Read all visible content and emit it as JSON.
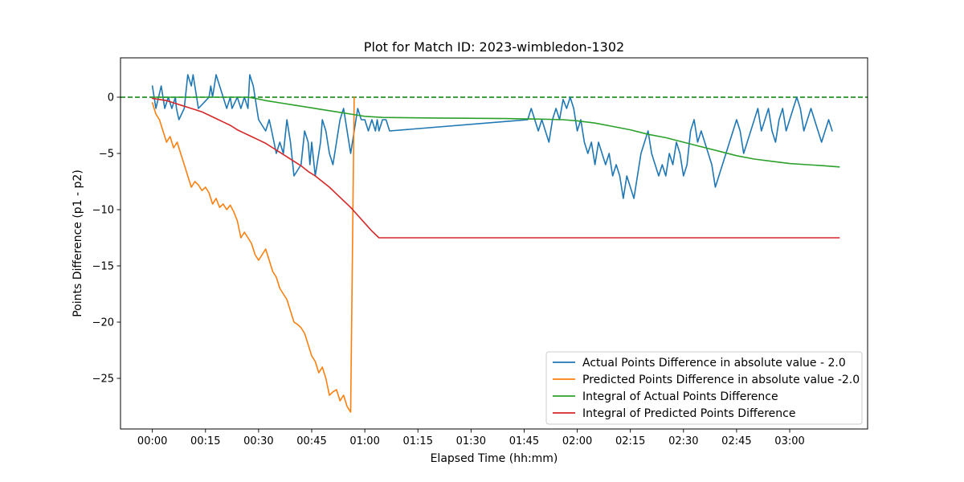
{
  "chart_data": {
    "type": "line",
    "title": "Plot for Match ID: 2023-wimbledon-1302",
    "xlabel": "Elapsed Time (hh:mm)",
    "ylabel": "Points Difference (p1 - p2)",
    "x_unit": "minutes",
    "xlim": [
      -9,
      202
    ],
    "ylim": [
      -29.5,
      3.5
    ],
    "x_ticks": [
      0,
      15,
      30,
      45,
      60,
      75,
      90,
      105,
      120,
      135,
      150,
      165,
      180
    ],
    "x_tick_labels": [
      "00:00",
      "00:15",
      "00:30",
      "00:45",
      "01:00",
      "01:15",
      "01:30",
      "01:45",
      "02:00",
      "02:15",
      "02:30",
      "02:45",
      "03:00"
    ],
    "y_ticks": [
      0,
      -5,
      -10,
      -15,
      -20,
      -25
    ],
    "y_tick_labels": [
      "0",
      "−5",
      "−10",
      "−15",
      "−20",
      "−25"
    ],
    "reference_line": {
      "y": 0,
      "color": "#008000",
      "style": "dashed"
    },
    "legend_position": "lower-right",
    "grid": false,
    "series": [
      {
        "name": "Actual Points Difference in absolute value - 2.0",
        "color": "#1f77b4",
        "points": [
          [
            0,
            1
          ],
          [
            1,
            -1
          ],
          [
            2.5,
            1
          ],
          [
            3.5,
            -1
          ],
          [
            4.5,
            0
          ],
          [
            5.5,
            -1
          ],
          [
            6.5,
            0
          ],
          [
            6.8,
            -1
          ],
          [
            7.5,
            -2
          ],
          [
            9,
            -1
          ],
          [
            10,
            2
          ],
          [
            11,
            1
          ],
          [
            11.5,
            2
          ],
          [
            12,
            1
          ],
          [
            13,
            -1
          ],
          [
            16,
            0
          ],
          [
            16.5,
            1
          ],
          [
            17,
            0
          ],
          [
            18,
            2
          ],
          [
            19,
            1
          ],
          [
            20,
            0
          ],
          [
            21,
            -1
          ],
          [
            22,
            0
          ],
          [
            22.5,
            -1
          ],
          [
            24,
            0
          ],
          [
            25,
            -1
          ],
          [
            26,
            0
          ],
          [
            27,
            -1
          ],
          [
            27.5,
            2
          ],
          [
            28.5,
            1
          ],
          [
            30,
            -2
          ],
          [
            32,
            -3
          ],
          [
            33,
            -2
          ],
          [
            33.7,
            -3
          ],
          [
            35,
            -5
          ],
          [
            36,
            -4
          ],
          [
            37,
            -5
          ],
          [
            38,
            -2
          ],
          [
            39,
            -4
          ],
          [
            40,
            -7
          ],
          [
            42,
            -6
          ],
          [
            43,
            -3
          ],
          [
            44,
            -4
          ],
          [
            44.5,
            -6
          ],
          [
            45,
            -4
          ],
          [
            46,
            -7
          ],
          [
            47.5,
            -4
          ],
          [
            48,
            -2
          ],
          [
            49,
            -3
          ],
          [
            50,
            -5
          ],
          [
            51,
            -6
          ],
          [
            52,
            -4
          ],
          [
            53,
            -2
          ],
          [
            54,
            -1
          ],
          [
            55,
            -3
          ],
          [
            56,
            -5
          ],
          [
            58,
            -1
          ],
          [
            59,
            -2
          ],
          [
            60,
            -2
          ],
          [
            61,
            -3
          ],
          [
            62,
            -2
          ],
          [
            63,
            -3
          ],
          [
            63.5,
            -2
          ],
          [
            64,
            -3
          ],
          [
            65,
            -2
          ],
          [
            66,
            -2
          ],
          [
            67,
            -3
          ],
          [
            106,
            -2
          ],
          [
            107,
            -1
          ],
          [
            108,
            -2
          ],
          [
            109,
            -3
          ],
          [
            110,
            -2
          ],
          [
            111,
            -3
          ],
          [
            112,
            -4
          ],
          [
            113,
            -2
          ],
          [
            114,
            -1
          ],
          [
            115,
            -2
          ],
          [
            116,
            -0.2
          ],
          [
            117,
            -1
          ],
          [
            118,
            0
          ],
          [
            119,
            -1
          ],
          [
            120,
            -3
          ],
          [
            121,
            -2
          ],
          [
            122,
            -4
          ],
          [
            123,
            -5
          ],
          [
            124,
            -4
          ],
          [
            125,
            -6
          ],
          [
            126,
            -4
          ],
          [
            127,
            -5
          ],
          [
            128,
            -6
          ],
          [
            129,
            -5
          ],
          [
            130,
            -7
          ],
          [
            131,
            -6
          ],
          [
            132,
            -7
          ],
          [
            133,
            -9
          ],
          [
            134,
            -7
          ],
          [
            135,
            -8
          ],
          [
            136,
            -9
          ],
          [
            137,
            -7
          ],
          [
            138,
            -5
          ],
          [
            139,
            -4
          ],
          [
            140,
            -3
          ],
          [
            141,
            -5
          ],
          [
            142,
            -6
          ],
          [
            143,
            -7
          ],
          [
            144,
            -6
          ],
          [
            145,
            -7
          ],
          [
            146,
            -5
          ],
          [
            147,
            -6
          ],
          [
            148,
            -4
          ],
          [
            149,
            -5
          ],
          [
            150,
            -7
          ],
          [
            151,
            -6
          ],
          [
            152,
            -3
          ],
          [
            153,
            -2
          ],
          [
            154,
            -4
          ],
          [
            155,
            -3
          ],
          [
            156,
            -4
          ],
          [
            157,
            -5
          ],
          [
            158,
            -6
          ],
          [
            159,
            -8
          ],
          [
            160,
            -7
          ],
          [
            161,
            -6
          ],
          [
            162,
            -5
          ],
          [
            163,
            -4
          ],
          [
            164,
            -3
          ],
          [
            165,
            -2
          ],
          [
            166,
            -3
          ],
          [
            167,
            -5
          ],
          [
            168,
            -4
          ],
          [
            169,
            -3
          ],
          [
            170,
            -2
          ],
          [
            171,
            -1
          ],
          [
            172,
            -3
          ],
          [
            173,
            -2
          ],
          [
            174,
            -1
          ],
          [
            175,
            -3
          ],
          [
            176,
            -4
          ],
          [
            177,
            -2
          ],
          [
            178,
            -1
          ],
          [
            179,
            -3
          ],
          [
            180,
            -2
          ],
          [
            181,
            -1
          ],
          [
            182,
            0
          ],
          [
            183,
            -1
          ],
          [
            184,
            -3
          ],
          [
            185,
            -2
          ],
          [
            186,
            -1
          ],
          [
            187,
            -2
          ],
          [
            188,
            -3
          ],
          [
            189,
            -4
          ],
          [
            190,
            -3
          ],
          [
            191,
            -2
          ],
          [
            192,
            -3
          ]
        ]
      },
      {
        "name": "Predicted Points Difference in absolute value -2.0",
        "color": "#ff7f0e",
        "points": [
          [
            0,
            -0.5
          ],
          [
            1,
            -1.5
          ],
          [
            2,
            -2
          ],
          [
            3,
            -3
          ],
          [
            4,
            -4
          ],
          [
            5,
            -3.5
          ],
          [
            6,
            -4.5
          ],
          [
            7,
            -4
          ],
          [
            8,
            -5
          ],
          [
            9,
            -6
          ],
          [
            10,
            -7
          ],
          [
            11,
            -8
          ],
          [
            12,
            -7.5
          ],
          [
            13,
            -7.8
          ],
          [
            14,
            -8.3
          ],
          [
            15,
            -8
          ],
          [
            16,
            -8.5
          ],
          [
            17,
            -9.5
          ],
          [
            18,
            -9
          ],
          [
            19,
            -9.8
          ],
          [
            20,
            -9.5
          ],
          [
            21,
            -10
          ],
          [
            22,
            -9.6
          ],
          [
            23,
            -10.2
          ],
          [
            24,
            -11
          ],
          [
            25,
            -12.5
          ],
          [
            26,
            -12
          ],
          [
            27,
            -12.5
          ],
          [
            28,
            -13
          ],
          [
            29,
            -14
          ],
          [
            30,
            -14.5
          ],
          [
            31,
            -14
          ],
          [
            32,
            -13.5
          ],
          [
            33,
            -14.5
          ],
          [
            34,
            -15.5
          ],
          [
            35,
            -16
          ],
          [
            36,
            -17
          ],
          [
            37,
            -17.5
          ],
          [
            38,
            -18
          ],
          [
            39,
            -19
          ],
          [
            40,
            -20
          ],
          [
            41,
            -20.2
          ],
          [
            42,
            -20.5
          ],
          [
            43,
            -21
          ],
          [
            44,
            -22
          ],
          [
            45,
            -23
          ],
          [
            46,
            -23.5
          ],
          [
            47,
            -24.5
          ],
          [
            48,
            -24
          ],
          [
            49,
            -25
          ],
          [
            50,
            -26.5
          ],
          [
            51,
            -26.2
          ],
          [
            52,
            -26
          ],
          [
            53,
            -27
          ],
          [
            54,
            -26.5
          ],
          [
            55,
            -27.5
          ],
          [
            56,
            -28
          ],
          [
            57,
            0
          ]
        ]
      },
      {
        "name": "Integral of Actual Points Difference",
        "color": "#2ca02c",
        "points": [
          [
            0,
            0
          ],
          [
            10,
            0
          ],
          [
            20,
            0
          ],
          [
            27,
            0
          ],
          [
            29,
            -0.1
          ],
          [
            32,
            -0.3
          ],
          [
            36,
            -0.5
          ],
          [
            40,
            -0.7
          ],
          [
            44,
            -0.9
          ],
          [
            48,
            -1.1
          ],
          [
            52,
            -1.3
          ],
          [
            56,
            -1.5
          ],
          [
            60,
            -1.7
          ],
          [
            65,
            -1.8
          ],
          [
            80,
            -1.85
          ],
          [
            100,
            -1.9
          ],
          [
            110,
            -1.95
          ],
          [
            116,
            -2
          ],
          [
            120,
            -2.1
          ],
          [
            125,
            -2.3
          ],
          [
            130,
            -2.6
          ],
          [
            135,
            -2.9
          ],
          [
            140,
            -3.3
          ],
          [
            145,
            -3.6
          ],
          [
            150,
            -4
          ],
          [
            155,
            -4.4
          ],
          [
            160,
            -4.8
          ],
          [
            165,
            -5.2
          ],
          [
            170,
            -5.5
          ],
          [
            175,
            -5.7
          ],
          [
            180,
            -5.9
          ],
          [
            185,
            -6
          ],
          [
            190,
            -6.1
          ],
          [
            194,
            -6.2
          ]
        ]
      },
      {
        "name": "Integral of Predicted Points Difference",
        "color": "#d62728",
        "points": [
          [
            0,
            -0.1
          ],
          [
            2,
            -0.2
          ],
          [
            4,
            -0.3
          ],
          [
            6,
            -0.5
          ],
          [
            8,
            -0.7
          ],
          [
            10,
            -0.9
          ],
          [
            12,
            -1.1
          ],
          [
            14,
            -1.3
          ],
          [
            16,
            -1.6
          ],
          [
            18,
            -1.9
          ],
          [
            20,
            -2.2
          ],
          [
            22,
            -2.5
          ],
          [
            24,
            -2.9
          ],
          [
            26,
            -3.2
          ],
          [
            28,
            -3.5
          ],
          [
            30,
            -3.8
          ],
          [
            32,
            -4.1
          ],
          [
            34,
            -4.5
          ],
          [
            36,
            -4.9
          ],
          [
            38,
            -5.3
          ],
          [
            40,
            -5.7
          ],
          [
            42,
            -6.1
          ],
          [
            44,
            -6.6
          ],
          [
            46,
            -7.0
          ],
          [
            48,
            -7.5
          ],
          [
            50,
            -8.0
          ],
          [
            52,
            -8.6
          ],
          [
            54,
            -9.2
          ],
          [
            56,
            -9.8
          ],
          [
            58,
            -10.5
          ],
          [
            60,
            -11.2
          ],
          [
            62,
            -11.9
          ],
          [
            64,
            -12.5
          ],
          [
            194,
            -12.5
          ]
        ]
      }
    ]
  }
}
